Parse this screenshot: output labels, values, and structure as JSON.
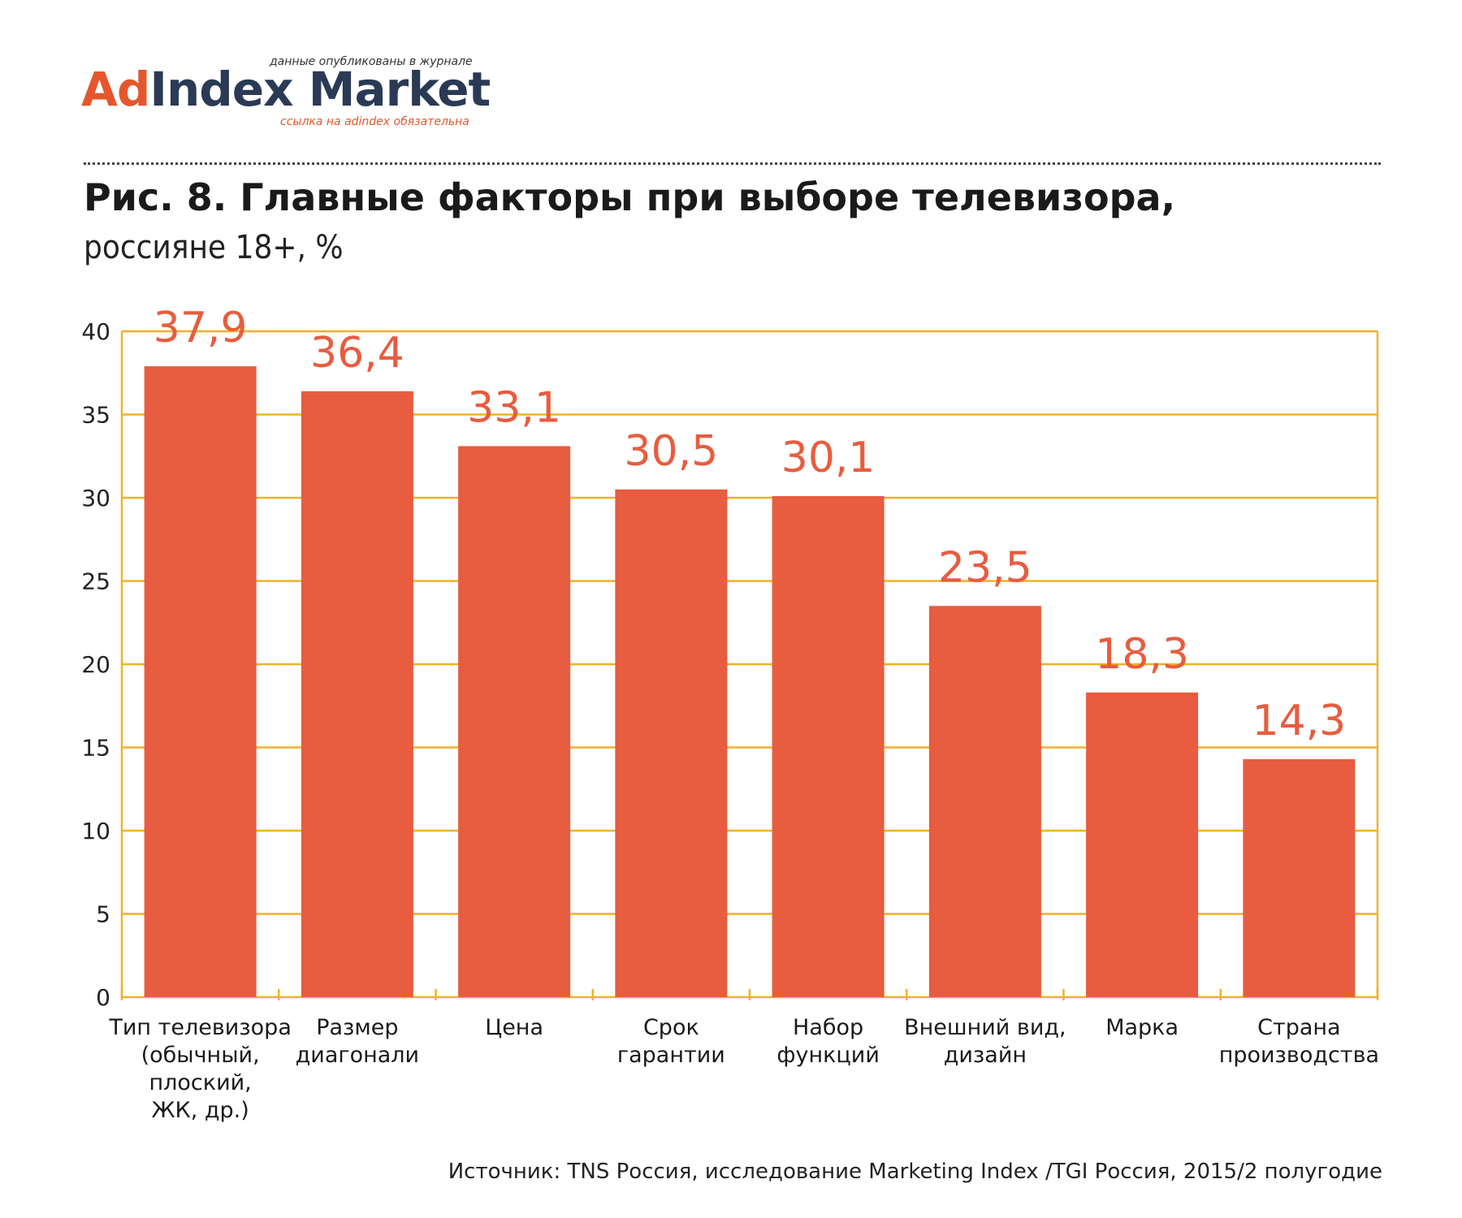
{
  "logo": {
    "top_note": "данные опубликованы в журнале",
    "brand_part1": "Ad",
    "brand_part2": "Index Market",
    "bottom_note": "ссылка на adindex обязательна"
  },
  "colors": {
    "bar": "#e85c3f",
    "value_label": "#e85c3f",
    "grid": "#f0b12a",
    "brand_orange": "#e4572e",
    "brand_navy": "#2a3a55"
  },
  "chart_data": {
    "type": "bar",
    "title": "Рис. 8. Главные факторы при выборе телевизора,",
    "subtitle": "россияне 18+, %",
    "categories": [
      "Тип телевизора (обычный, плоский, ЖК, др.)",
      "Размер диагонали",
      "Цена",
      "Срок гарантии",
      "Набор функций",
      "Внешний вид, дизайн",
      "Марка",
      "Страна производства"
    ],
    "category_lines": [
      [
        "Тип телевизора",
        "(обычный,",
        "плоский,",
        "ЖК, др.)"
      ],
      [
        "Размер",
        "диагонали"
      ],
      [
        "Цена"
      ],
      [
        "Срок",
        "гарантии"
      ],
      [
        "Набор",
        "функций"
      ],
      [
        "Внешний вид,",
        "дизайн"
      ],
      [
        "Марка"
      ],
      [
        "Страна",
        "производства"
      ]
    ],
    "values": [
      37.9,
      36.4,
      33.1,
      30.5,
      30.1,
      23.5,
      18.3,
      14.3
    ],
    "value_labels": [
      "37,9",
      "36,4",
      "33,1",
      "30,5",
      "30,1",
      "23,5",
      "18,3",
      "14,3"
    ],
    "ylim": [
      0,
      40
    ],
    "yticks": [
      0,
      5,
      10,
      15,
      20,
      25,
      30,
      35,
      40
    ],
    "grid": true,
    "xlabel": "",
    "ylabel": ""
  },
  "source": "Источник: TNS Россия, исследование Marketing Index /TGI Россия, 2015/2 полугодие"
}
